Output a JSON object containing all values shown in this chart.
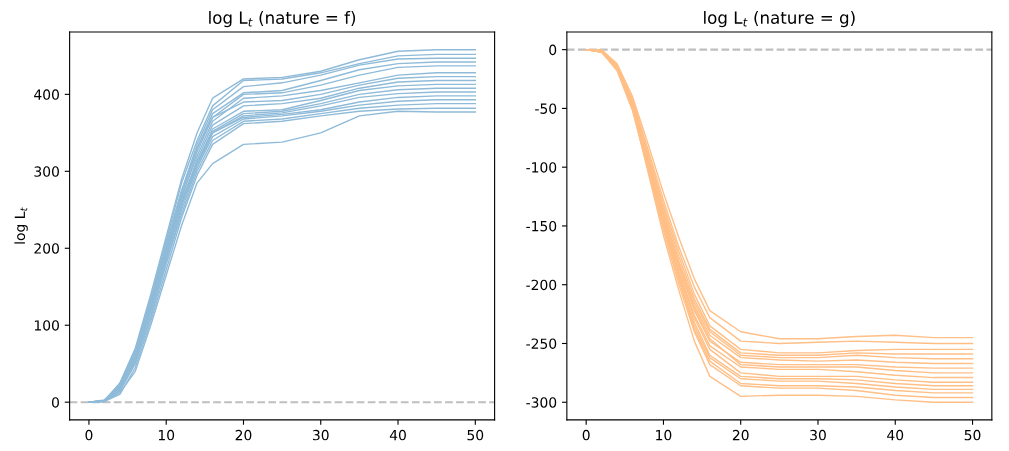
{
  "chart_data": [
    {
      "type": "line",
      "title": "log L$_{t}$ (nature = f)",
      "ylabel": "log L$_{t}$",
      "x": [
        0,
        2,
        4,
        6,
        8,
        10,
        12,
        14,
        16,
        20,
        25,
        30,
        35,
        40,
        45,
        50
      ],
      "xlim": [
        -2.5,
        52.5
      ],
      "xticks": [
        0,
        10,
        20,
        30,
        40,
        50
      ],
      "ylim": [
        -23,
        481
      ],
      "yticks": [
        0,
        100,
        200,
        300,
        400
      ],
      "grid": false,
      "line_style": "solid",
      "marker": "none",
      "ref_lines": [
        {
          "axis": "y",
          "value": 0,
          "color": "#bfbfbf",
          "line_style": "dashed"
        }
      ],
      "series": [
        {
          "color": "#8fbbd9",
          "values": [
            0,
            2,
            25,
            70,
            140,
            215,
            290,
            350,
            395,
            420,
            422,
            430,
            445,
            456,
            458,
            458
          ]
        },
        {
          "color": "#8fbbd9",
          "values": [
            0,
            3,
            22,
            65,
            135,
            210,
            285,
            340,
            385,
            418,
            420,
            428,
            440,
            450,
            452,
            452
          ]
        },
        {
          "color": "#8fbbd9",
          "values": [
            0,
            1,
            18,
            60,
            130,
            205,
            275,
            335,
            380,
            410,
            415,
            425,
            438,
            446,
            447,
            447
          ]
        },
        {
          "color": "#8fbbd9",
          "values": [
            0,
            2,
            20,
            62,
            128,
            200,
            270,
            330,
            375,
            402,
            405,
            418,
            432,
            440,
            442,
            442
          ]
        },
        {
          "color": "#8fbbd9",
          "values": [
            0,
            2,
            15,
            55,
            120,
            195,
            265,
            325,
            370,
            400,
            402,
            412,
            425,
            435,
            437,
            437
          ]
        },
        {
          "color": "#8fbbd9",
          "values": [
            0,
            1,
            20,
            60,
            125,
            198,
            268,
            320,
            365,
            395,
            398,
            405,
            415,
            425,
            428,
            428
          ]
        },
        {
          "color": "#8fbbd9",
          "values": [
            0,
            2,
            24,
            68,
            135,
            205,
            275,
            330,
            370,
            390,
            392,
            400,
            412,
            421,
            423,
            423
          ]
        },
        {
          "color": "#8fbbd9",
          "values": [
            0,
            1,
            18,
            58,
            122,
            190,
            260,
            315,
            360,
            385,
            388,
            395,
            408,
            416,
            418,
            418
          ]
        },
        {
          "color": "#8fbbd9",
          "values": [
            0,
            2,
            16,
            55,
            118,
            188,
            258,
            310,
            355,
            378,
            380,
            392,
            405,
            411,
            413,
            413
          ]
        },
        {
          "color": "#8fbbd9",
          "values": [
            0,
            1,
            20,
            60,
            125,
            195,
            262,
            312,
            352,
            375,
            378,
            388,
            400,
            406,
            408,
            408
          ]
        },
        {
          "color": "#8fbbd9",
          "values": [
            0,
            2,
            14,
            50,
            110,
            180,
            250,
            305,
            350,
            372,
            376,
            385,
            396,
            401,
            403,
            403
          ]
        },
        {
          "color": "#8fbbd9",
          "values": [
            0,
            1,
            17,
            56,
            118,
            185,
            255,
            310,
            350,
            370,
            374,
            380,
            390,
            396,
            398,
            398
          ]
        },
        {
          "color": "#8fbbd9",
          "values": [
            0,
            2,
            19,
            58,
            120,
            190,
            258,
            305,
            345,
            368,
            372,
            378,
            386,
            391,
            393,
            393
          ]
        },
        {
          "color": "#8fbbd9",
          "values": [
            0,
            1,
            15,
            52,
            112,
            180,
            245,
            300,
            340,
            365,
            368,
            375,
            382,
            386,
            388,
            388
          ]
        },
        {
          "color": "#8fbbd9",
          "values": [
            0,
            1,
            10,
            45,
            105,
            172,
            240,
            295,
            335,
            362,
            365,
            372,
            378,
            381,
            382,
            382
          ]
        },
        {
          "color": "#8fbbd9",
          "values": [
            0,
            1,
            12,
            40,
            100,
            165,
            230,
            285,
            310,
            335,
            338,
            350,
            372,
            378,
            377,
            377
          ]
        }
      ]
    },
    {
      "type": "line",
      "title": "log L$_{t}$ (nature = g)",
      "x": [
        0,
        2,
        4,
        6,
        8,
        10,
        12,
        14,
        16,
        20,
        25,
        30,
        35,
        40,
        45,
        50
      ],
      "xlim": [
        -2.5,
        52.5
      ],
      "xticks": [
        0,
        10,
        20,
        30,
        40,
        50
      ],
      "ylim": [
        -315,
        15
      ],
      "yticks": [
        -300,
        -250,
        -200,
        -150,
        -100,
        -50,
        0
      ],
      "grid": false,
      "line_style": "solid",
      "marker": "none",
      "ref_lines": [
        {
          "axis": "y",
          "value": 0,
          "color": "#bfbfbf",
          "line_style": "dashed"
        }
      ],
      "series": [
        {
          "color": "#ffbf86",
          "values": [
            0,
            0,
            -12,
            -40,
            -80,
            -122,
            -160,
            -195,
            -222,
            -240,
            -246,
            -246,
            -244,
            -243,
            -245,
            -245
          ]
        },
        {
          "color": "#ffbf86",
          "values": [
            0,
            -1,
            -14,
            -42,
            -85,
            -128,
            -168,
            -202,
            -228,
            -248,
            -250,
            -249,
            -248,
            -249,
            -250,
            -250
          ]
        },
        {
          "color": "#ffbf86",
          "values": [
            0,
            -1,
            -13,
            -44,
            -88,
            -132,
            -172,
            -208,
            -235,
            -255,
            -258,
            -258,
            -256,
            -255,
            -255,
            -255
          ]
        },
        {
          "color": "#ffbf86",
          "values": [
            0,
            -2,
            -15,
            -46,
            -90,
            -135,
            -176,
            -212,
            -238,
            -258,
            -260,
            -260,
            -258,
            -259,
            -259,
            -259
          ]
        },
        {
          "color": "#ffbf86",
          "values": [
            0,
            -1,
            -16,
            -45,
            -92,
            -138,
            -180,
            -215,
            -240,
            -260,
            -262,
            -262,
            -260,
            -262,
            -263,
            -263
          ]
        },
        {
          "color": "#ffbf86",
          "values": [
            0,
            -2,
            -15,
            -47,
            -94,
            -140,
            -182,
            -218,
            -243,
            -262,
            -264,
            -265,
            -264,
            -266,
            -267,
            -267
          ]
        },
        {
          "color": "#ffbf86",
          "values": [
            0,
            -1,
            -14,
            -48,
            -95,
            -142,
            -185,
            -222,
            -248,
            -266,
            -268,
            -268,
            -268,
            -270,
            -271,
            -271
          ]
        },
        {
          "color": "#ffbf86",
          "values": [
            0,
            -2,
            -16,
            -46,
            -93,
            -140,
            -184,
            -220,
            -246,
            -268,
            -270,
            -270,
            -270,
            -273,
            -275,
            -275
          ]
        },
        {
          "color": "#ffbf86",
          "values": [
            0,
            -1,
            -15,
            -48,
            -96,
            -145,
            -188,
            -226,
            -252,
            -270,
            -272,
            -272,
            -274,
            -277,
            -279,
            -279
          ]
        },
        {
          "color": "#ffbf86",
          "values": [
            0,
            -2,
            -17,
            -50,
            -98,
            -146,
            -190,
            -228,
            -255,
            -275,
            -278,
            -278,
            -278,
            -281,
            -283,
            -283
          ]
        },
        {
          "color": "#ffbf86",
          "values": [
            0,
            -1,
            -15,
            -49,
            -97,
            -148,
            -192,
            -232,
            -260,
            -278,
            -280,
            -280,
            -281,
            -284,
            -286,
            -286
          ]
        },
        {
          "color": "#ffbf86",
          "values": [
            0,
            -2,
            -16,
            -50,
            -100,
            -150,
            -195,
            -235,
            -262,
            -280,
            -282,
            -282,
            -284,
            -287,
            -289,
            -289
          ]
        },
        {
          "color": "#ffbf86",
          "values": [
            0,
            -1,
            -15,
            -48,
            -98,
            -150,
            -196,
            -238,
            -265,
            -284,
            -286,
            -286,
            -287,
            -290,
            -292,
            -292
          ]
        },
        {
          "color": "#ffbf86",
          "values": [
            0,
            -2,
            -18,
            -52,
            -102,
            -154,
            -200,
            -240,
            -268,
            -286,
            -288,
            -288,
            -290,
            -294,
            -296,
            -296
          ]
        },
        {
          "color": "#ffbf86",
          "values": [
            0,
            -1,
            -16,
            -50,
            -104,
            -158,
            -205,
            -248,
            -278,
            -295,
            -294,
            -294,
            -295,
            -298,
            -300,
            -300
          ]
        }
      ]
    }
  ]
}
